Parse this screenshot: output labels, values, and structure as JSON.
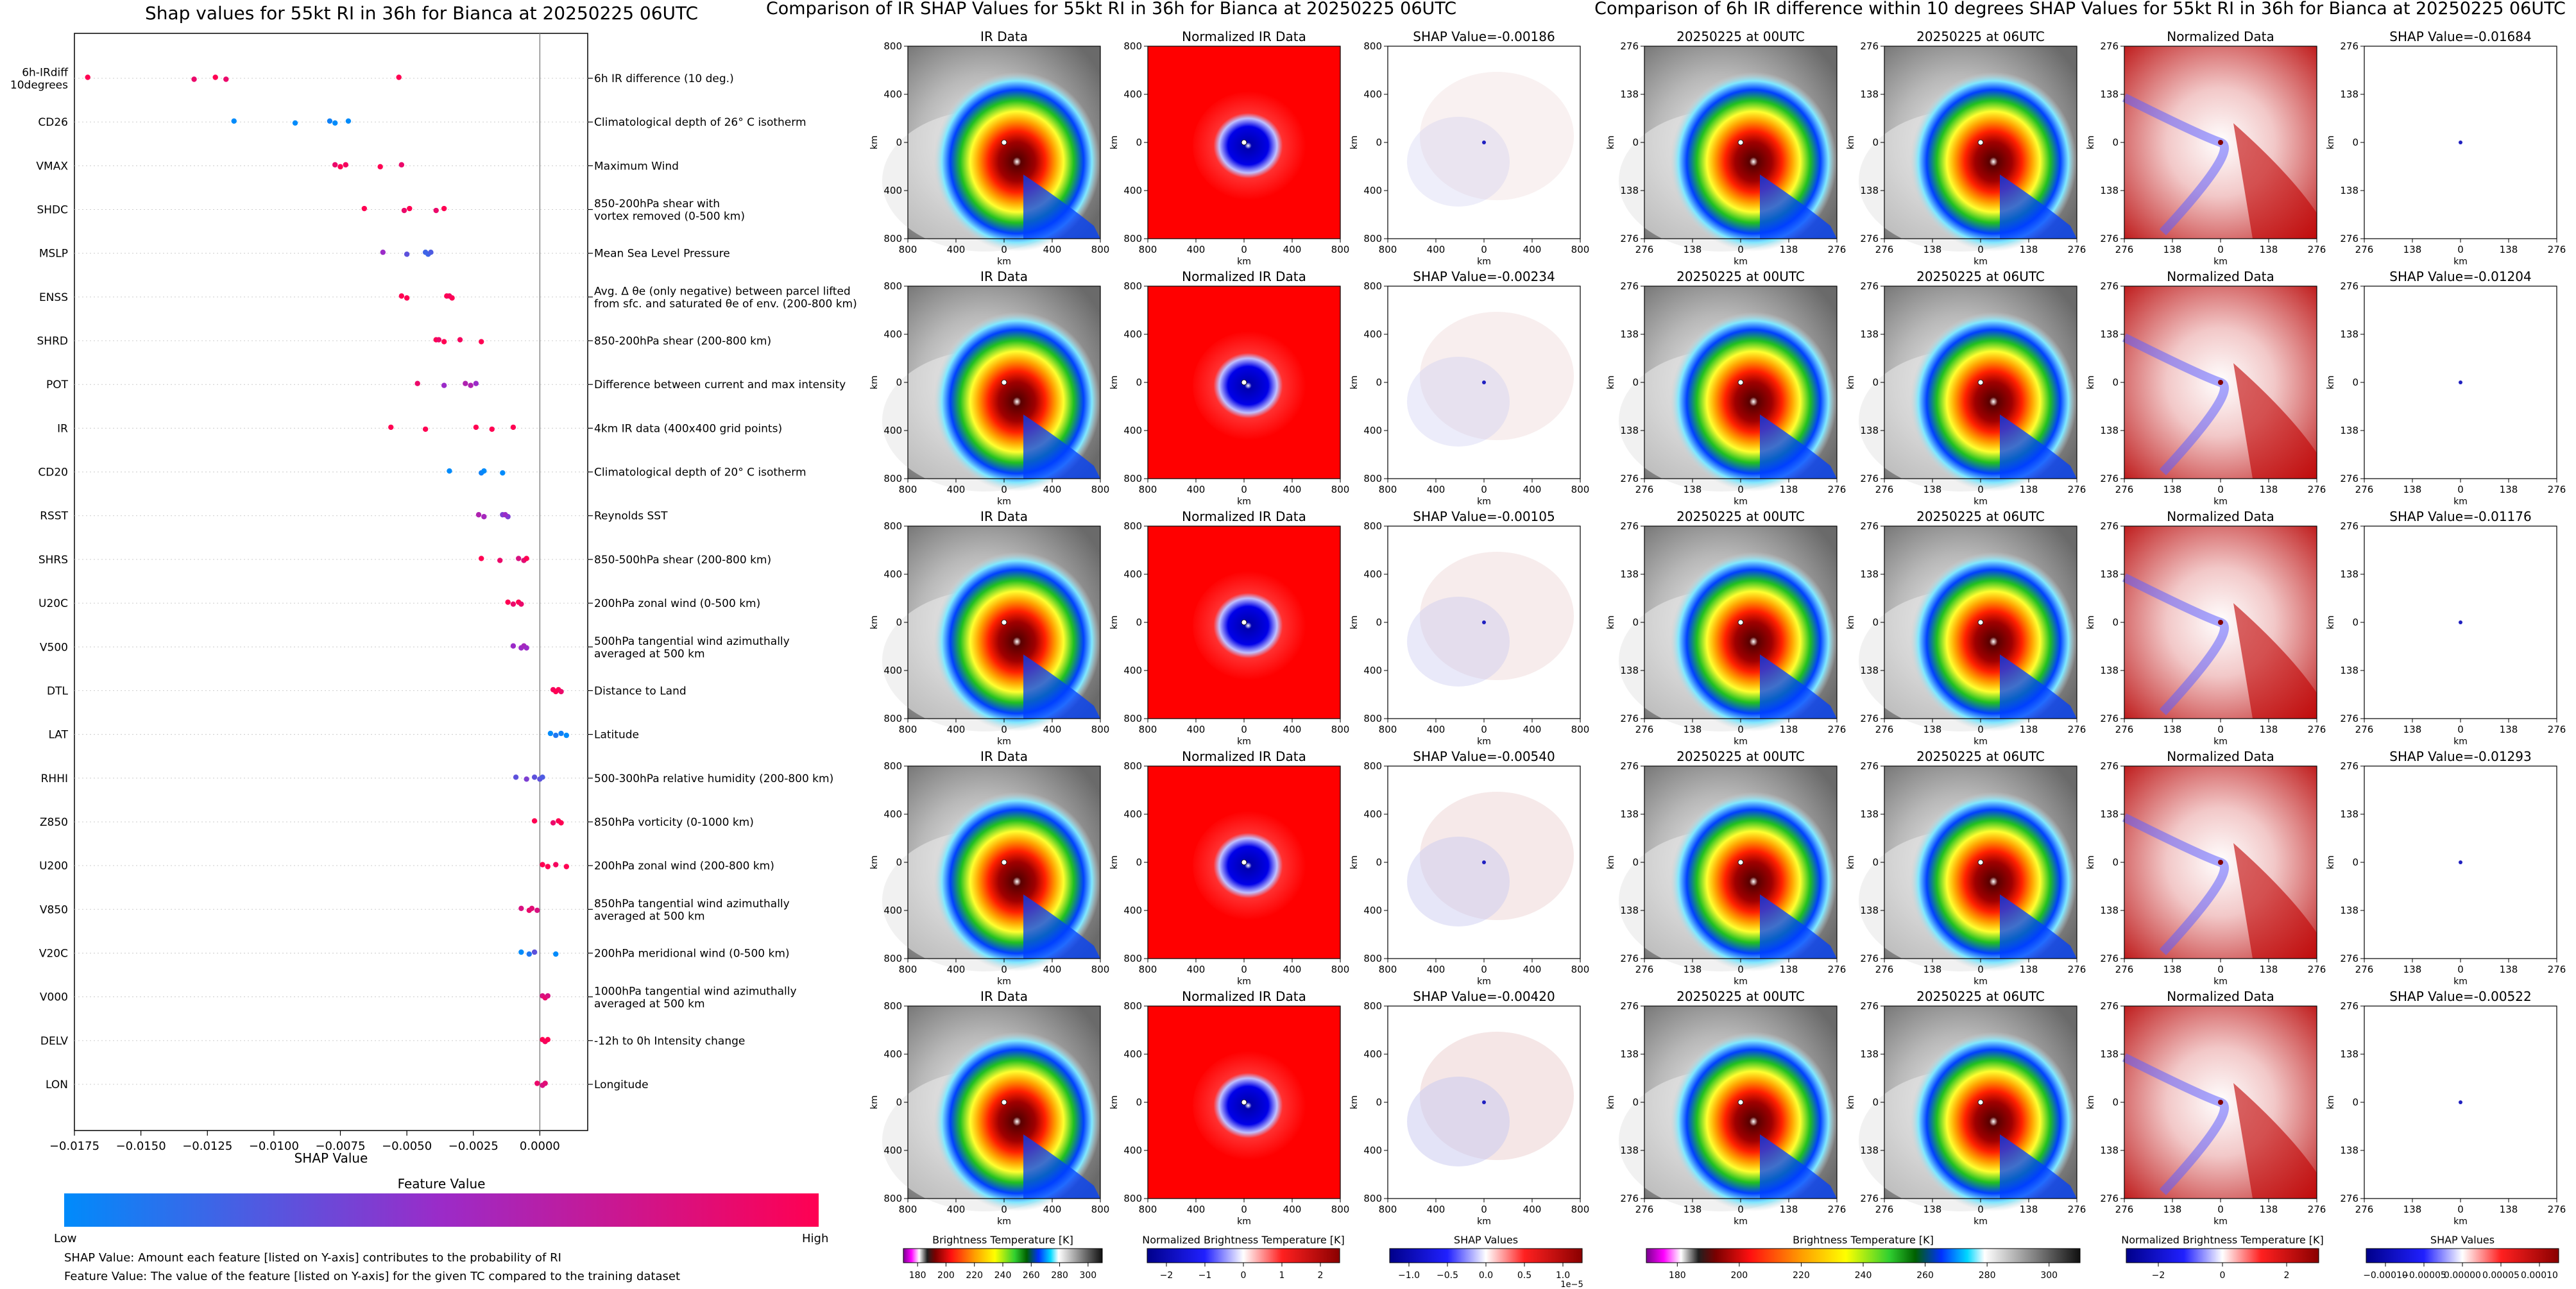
{
  "summary": {
    "title": "Shap values for 55kt RI in 36h for Bianca at 20250225 06UTC",
    "xlabel": "SHAP Value",
    "feature_value_label": "Feature Value",
    "low_label": "Low",
    "high_label": "High",
    "note1": "SHAP Value: Amount each feature [listed on Y-axis] contributes to the probability of RI",
    "note2": "Feature Value: The value of the feature [listed on Y-axis] for the given TC compared to the training dataset"
  },
  "middle": {
    "suptitle": "Comparison of IR SHAP Values for 55kt RI in 36h for Bianca at 20250225 06UTC",
    "cbar_labels": [
      "Brightness Temperature [K]",
      "Normalized Brightness Temperature [K]",
      "SHAP Values"
    ],
    "cbar_ticks": [
      [
        "180",
        "200",
        "220",
        "240",
        "260",
        "280",
        "300"
      ],
      [
        "−2",
        "−1",
        "0",
        "1",
        "2"
      ],
      [
        "−1.0",
        "−0.5",
        "0.0",
        "0.5",
        "1.0"
      ]
    ],
    "cbar_offset": "1e−5"
  },
  "right": {
    "suptitle": "Comparison of 6h IR difference within 10 degrees SHAP Values for 55kt RI in 36h for Bianca at 20250225 06UTC",
    "cbar_labels": [
      "Brightness Temperature [K]",
      "Normalized Brightness Temperature [K]",
      "SHAP Values"
    ],
    "cbar_ticks": [
      [
        "180",
        "200",
        "220",
        "240",
        "260",
        "280",
        "300"
      ],
      [
        "−2",
        "0",
        "2"
      ],
      [
        "−0.00010",
        "−0.00005",
        "0.00000",
        "0.00005",
        "0.00010"
      ]
    ]
  },
  "colors": {
    "low": "#008bfb",
    "high": "#ff0052",
    "mid": "#9b2bc8",
    "shap_pos": "#d7191c",
    "shap_neg": "#2c2cd8"
  },
  "chart_data": [
    {
      "type": "scatter",
      "title": "Shap values for 55kt RI in 36h for Bianca at 20250225 06UTC",
      "xlabel": "SHAP Value",
      "xlim": [
        -0.0175,
        0.0018
      ],
      "xticks": [
        -0.0175,
        -0.015,
        -0.0125,
        -0.01,
        -0.0075,
        -0.005,
        -0.0025,
        0.0
      ],
      "xtick_labels": [
        "−0.0175",
        "−0.0150",
        "−0.0125",
        "−0.0100",
        "−0.0075",
        "−0.0050",
        "−0.0025",
        "0.0000"
      ],
      "features": [
        {
          "name": "6h-IRdiff\n10degrees",
          "desc": "6h IR difference (10 deg.)",
          "points": [
            [
              -0.017,
              1.0
            ],
            [
              -0.013,
              0.9
            ],
            [
              -0.0122,
              1.0
            ],
            [
              -0.0118,
              0.9
            ],
            [
              -0.0053,
              1.0
            ]
          ]
        },
        {
          "name": "CD26",
          "desc": "Climatological depth of 26° C isotherm",
          "points": [
            [
              -0.0115,
              0.0
            ],
            [
              -0.0092,
              0.0
            ],
            [
              -0.0079,
              0.05
            ],
            [
              -0.0077,
              0.0
            ],
            [
              -0.0072,
              0.0
            ]
          ]
        },
        {
          "name": "VMAX",
          "desc": "Maximum Wind",
          "points": [
            [
              -0.0077,
              0.9
            ],
            [
              -0.0075,
              1.0
            ],
            [
              -0.0073,
              0.95
            ],
            [
              -0.006,
              1.0
            ],
            [
              -0.0052,
              0.9
            ]
          ]
        },
        {
          "name": "SHDC",
          "desc": "850-200hPa shear with\nvortex removed (0-500 km)",
          "points": [
            [
              -0.0066,
              1.0
            ],
            [
              -0.0051,
              0.9
            ],
            [
              -0.0049,
              1.0
            ],
            [
              -0.0039,
              0.9
            ],
            [
              -0.0036,
              1.0
            ]
          ]
        },
        {
          "name": "MSLP",
          "desc": "Mean Sea Level Pressure",
          "points": [
            [
              -0.0059,
              0.5
            ],
            [
              -0.005,
              0.3
            ],
            [
              -0.0043,
              0.2
            ],
            [
              -0.0042,
              0.2
            ],
            [
              -0.0041,
              0.25
            ]
          ]
        },
        {
          "name": "ENSS",
          "desc": "Avg. Δ θe (only negative) between parcel lifted\nfrom sfc. and saturated θe of env. (200-800 km)",
          "points": [
            [
              -0.0052,
              1.0
            ],
            [
              -0.005,
              1.0
            ],
            [
              -0.0035,
              1.0
            ],
            [
              -0.0033,
              1.0
            ],
            [
              -0.0034,
              0.95
            ]
          ]
        },
        {
          "name": "SHRD",
          "desc": "850-200hPa shear (200-800 km)",
          "points": [
            [
              -0.0039,
              1.0
            ],
            [
              -0.0036,
              1.0
            ],
            [
              -0.003,
              0.95
            ],
            [
              -0.0022,
              1.0
            ],
            [
              -0.0038,
              0.9
            ]
          ]
        },
        {
          "name": "POT",
          "desc": "Difference between current and max intensity",
          "points": [
            [
              -0.0046,
              0.9
            ],
            [
              -0.0036,
              0.5
            ],
            [
              -0.0028,
              0.6
            ],
            [
              -0.0026,
              0.6
            ],
            [
              -0.0024,
              0.5
            ]
          ]
        },
        {
          "name": "IR",
          "desc": "4km IR data (400x400 grid points)",
          "points": [
            [
              -0.0056,
              1.0
            ],
            [
              -0.0043,
              1.0
            ],
            [
              -0.0024,
              1.0
            ],
            [
              -0.0018,
              1.0
            ],
            [
              -0.001,
              1.0
            ]
          ]
        },
        {
          "name": "CD20",
          "desc": "Climatological depth of 20° C isotherm",
          "points": [
            [
              -0.0034,
              0.0
            ],
            [
              -0.0022,
              0.05
            ],
            [
              -0.0021,
              0.0
            ],
            [
              -0.0014,
              0.0
            ]
          ]
        },
        {
          "name": "RSST",
          "desc": "Reynolds SST",
          "points": [
            [
              -0.0023,
              0.6
            ],
            [
              -0.0021,
              0.55
            ],
            [
              -0.0014,
              0.4
            ],
            [
              -0.0012,
              0.4
            ],
            [
              -0.0013,
              0.5
            ]
          ]
        },
        {
          "name": "SHRS",
          "desc": "850-500hPa shear (200-800 km)",
          "points": [
            [
              -0.0022,
              1.0
            ],
            [
              -0.0015,
              0.9
            ],
            [
              -0.0008,
              0.8
            ],
            [
              -0.0006,
              0.85
            ],
            [
              -0.0005,
              1.0
            ]
          ]
        },
        {
          "name": "U20C",
          "desc": "200hPa zonal wind (0-500 km)",
          "points": [
            [
              -0.0012,
              1.0
            ],
            [
              -0.001,
              0.9
            ],
            [
              -0.0008,
              1.0
            ],
            [
              -0.0007,
              0.9
            ]
          ]
        },
        {
          "name": "V500",
          "desc": "500hPa tangential wind azimuthally\naveraged at 500 km",
          "points": [
            [
              -0.001,
              0.5
            ],
            [
              -0.0007,
              0.5
            ],
            [
              -0.0006,
              0.55
            ],
            [
              -0.0005,
              0.5
            ]
          ]
        },
        {
          "name": "DTL",
          "desc": "Distance to Land",
          "points": [
            [
              0.0005,
              0.95
            ],
            [
              0.0006,
              1.0
            ],
            [
              0.0007,
              1.0
            ],
            [
              0.0008,
              0.9
            ]
          ]
        },
        {
          "name": "LAT",
          "desc": "Latitude",
          "points": [
            [
              0.0004,
              0.0
            ],
            [
              0.0006,
              0.1
            ],
            [
              0.0008,
              0.05
            ],
            [
              0.001,
              0.0
            ]
          ]
        },
        {
          "name": "RHHI",
          "desc": "500-300hPa relative humidity (200-800 km)",
          "points": [
            [
              -0.0009,
              0.3
            ],
            [
              -0.0005,
              0.4
            ],
            [
              -0.0002,
              0.3
            ],
            [
              0.0,
              0.3
            ],
            [
              0.0001,
              0.25
            ]
          ]
        },
        {
          "name": "Z850",
          "desc": "850hPa vorticity (0-1000 km)",
          "points": [
            [
              -0.0002,
              1.0
            ],
            [
              0.0005,
              0.9
            ],
            [
              0.0007,
              1.0
            ],
            [
              0.0008,
              1.0
            ]
          ]
        },
        {
          "name": "U200",
          "desc": "200hPa zonal wind (200-800 km)",
          "points": [
            [
              0.0001,
              1.0
            ],
            [
              0.0003,
              1.0
            ],
            [
              0.0006,
              0.95
            ],
            [
              0.001,
              1.0
            ]
          ]
        },
        {
          "name": "V850",
          "desc": "850hPa tangential wind azimuthally\naveraged at 500 km",
          "points": [
            [
              -0.0007,
              0.8
            ],
            [
              -0.0004,
              0.9
            ],
            [
              -0.0003,
              0.85
            ],
            [
              -0.0001,
              0.8
            ]
          ]
        },
        {
          "name": "V20C",
          "desc": "200hPa meridional wind (0-500 km)",
          "points": [
            [
              -0.0007,
              0.0
            ],
            [
              -0.0004,
              0.1
            ],
            [
              -0.0002,
              0.3
            ],
            [
              0.0006,
              0.0
            ]
          ]
        },
        {
          "name": "V000",
          "desc": "1000hPa tangential wind azimuthally\naveraged at 500 km",
          "points": [
            [
              0.0001,
              0.8
            ],
            [
              0.0002,
              0.9
            ],
            [
              0.0003,
              0.8
            ]
          ]
        },
        {
          "name": "DELV",
          "desc": "-12h to 0h Intensity change",
          "points": [
            [
              0.0001,
              1.0
            ],
            [
              0.0002,
              0.95
            ],
            [
              0.0003,
              1.0
            ]
          ]
        },
        {
          "name": "LON",
          "desc": "Longitude",
          "points": [
            [
              -0.0001,
              0.9
            ],
            [
              0.0001,
              0.8
            ],
            [
              0.0002,
              0.85
            ]
          ]
        }
      ]
    },
    {
      "type": "heatmap",
      "title": "Comparison of IR SHAP Values for 55kt RI in 36h for Bianca at 20250225 06UTC",
      "column_titles": [
        "IR Data",
        "Normalized IR Data"
      ],
      "shap_titles": [
        "SHAP Value=-0.00186",
        "SHAP Value=-0.00234",
        "SHAP Value=-0.00105",
        "SHAP Value=-0.00540",
        "SHAP Value=-0.00420"
      ],
      "xlabel": "km",
      "ylabel": "km",
      "xticks": [
        "800",
        "400",
        "0",
        "400",
        "800"
      ],
      "yticks": [
        "800",
        "400",
        "0",
        "400",
        "800"
      ]
    },
    {
      "type": "heatmap",
      "title": "Comparison of 6h IR difference within 10 degrees SHAP Values for 55kt RI in 36h for Bianca at 20250225 06UTC",
      "column_titles": [
        "20250225 at 00UTC",
        "20250225 at 06UTC",
        "Normalized Data"
      ],
      "shap_titles": [
        "SHAP Value=-0.01684",
        "SHAP Value=-0.01204",
        "SHAP Value=-0.01176",
        "SHAP Value=-0.01293",
        "SHAP Value=-0.00522"
      ],
      "xlabel": "km",
      "ylabel": "km",
      "xticks": [
        "276",
        "138",
        "0",
        "138",
        "276"
      ],
      "yticks": [
        "276",
        "138",
        "0",
        "138",
        "276"
      ]
    }
  ]
}
